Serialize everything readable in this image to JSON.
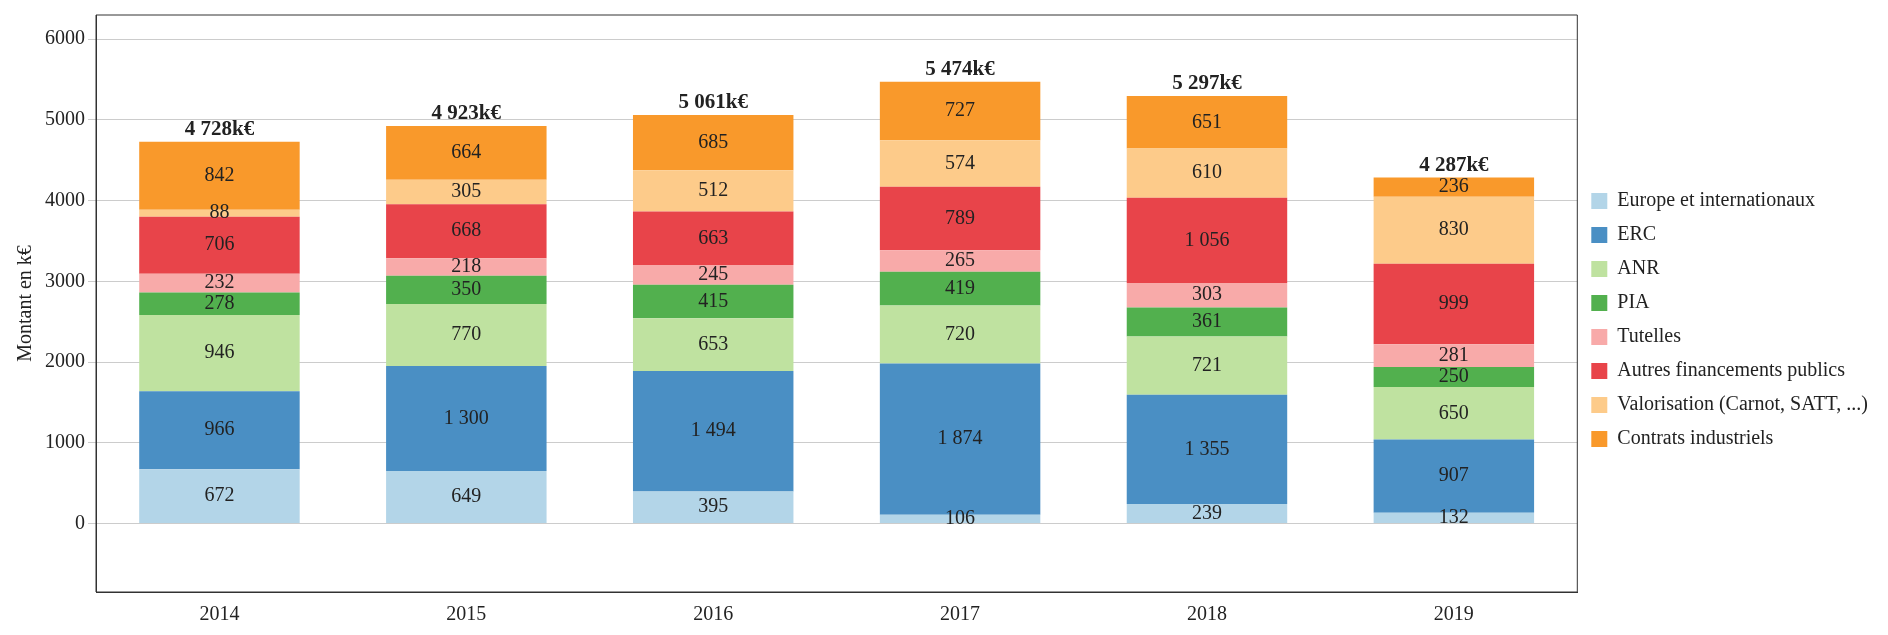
{
  "chart_data": {
    "type": "bar",
    "stacked": true,
    "ylabel": "Montant en k€",
    "categories": [
      "2014",
      "2015",
      "2016",
      "2017",
      "2018",
      "2019"
    ],
    "ylim": [
      -850,
      6300
    ],
    "yticks": [
      0,
      1000,
      2000,
      3000,
      4000,
      5000,
      6000
    ],
    "grid": "y",
    "legend": "right",
    "totals": [
      "4 728k€",
      "4 923k€",
      "5 061k€",
      "5 474k€",
      "5 297k€",
      "4 287k€"
    ],
    "series": [
      {
        "name": "Europe et internationaux",
        "color": "#b3d5e8",
        "values": [
          672,
          649,
          395,
          106,
          239,
          132
        ],
        "value_labels": [
          "672",
          "649",
          "395",
          "106",
          "239",
          "132"
        ]
      },
      {
        "name": "ERC",
        "color": "#4a8fc4",
        "values": [
          966,
          1300,
          1494,
          1874,
          1355,
          907
        ],
        "value_labels": [
          "966",
          "1 300",
          "1 494",
          "1 874",
          "1 355",
          "907"
        ]
      },
      {
        "name": "ANR",
        "color": "#bfe2a0",
        "values": [
          946,
          770,
          653,
          720,
          721,
          650
        ],
        "value_labels": [
          "946",
          "770",
          "653",
          "720",
          "721",
          "650"
        ]
      },
      {
        "name": "PIA",
        "color": "#52b04e",
        "values": [
          278,
          350,
          415,
          419,
          361,
          250
        ],
        "value_labels": [
          "278",
          "350",
          "415",
          "419",
          "361",
          "250"
        ]
      },
      {
        "name": "Tutelles",
        "color": "#f8aaa9",
        "values": [
          232,
          218,
          245,
          265,
          303,
          281
        ],
        "value_labels": [
          "232",
          "218",
          "245",
          "265",
          "303",
          "281"
        ]
      },
      {
        "name": "Autres financements publics",
        "color": "#e8444a",
        "values": [
          706,
          668,
          663,
          789,
          1056,
          999
        ],
        "value_labels": [
          "706",
          "668",
          "663",
          "789",
          "1 056",
          "999"
        ]
      },
      {
        "name": "Valorisation (Carnot, SATT, ...)",
        "color": "#fdcb8a",
        "values": [
          88,
          305,
          512,
          574,
          610,
          830
        ],
        "value_labels": [
          "88",
          "305",
          "512",
          "574",
          "610",
          "830"
        ]
      },
      {
        "name": "Contrats industriels",
        "color": "#f9992b",
        "values": [
          842,
          664,
          685,
          727,
          651,
          236
        ],
        "value_labels": [
          "842",
          "664",
          "685",
          "727",
          "651",
          "236"
        ]
      }
    ]
  }
}
